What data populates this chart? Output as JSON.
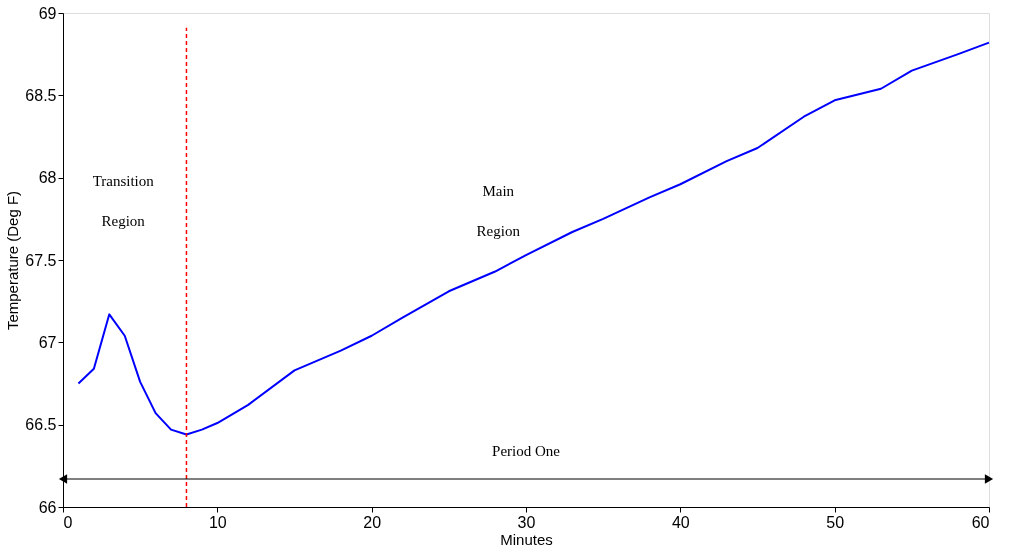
{
  "chart_data": {
    "type": "line",
    "xlabel": "Minutes",
    "ylabel": "Temperature (Deg F)",
    "x": [
      1,
      2,
      3,
      4,
      5,
      6,
      7,
      8,
      9,
      10,
      12,
      15,
      18,
      20,
      22,
      25,
      28,
      30,
      33,
      35,
      38,
      40,
      43,
      45,
      48,
      50,
      53,
      55,
      58,
      60
    ],
    "series": [
      {
        "color": "#0000ff",
        "values": [
          66.75,
          66.84,
          67.17,
          67.04,
          66.76,
          66.57,
          66.47,
          66.44,
          66.47,
          66.51,
          66.62,
          66.83,
          66.95,
          67.04,
          67.15,
          67.31,
          67.43,
          67.53,
          67.67,
          67.75,
          67.88,
          67.96,
          68.1,
          68.18,
          68.37,
          68.47,
          68.54,
          68.65,
          68.75,
          68.82
        ]
      }
    ],
    "xlim": [
      0,
      60
    ],
    "xticks": [
      0,
      10,
      20,
      30,
      40,
      50,
      60
    ],
    "ylim": [
      66,
      69
    ],
    "yticks": [
      66,
      66.5,
      67,
      67.5,
      68,
      68.5,
      69
    ],
    "ref_lines": [
      {
        "axis": "x",
        "value": 8,
        "color": "#ff0000",
        "line_style": "dashed"
      },
      {
        "axis": "y",
        "value": 66.17,
        "label": "Period One",
        "color": "#000000",
        "line_style": "solid"
      }
    ],
    "annotations": [
      "Transition\nRegion",
      "Main\nRegion"
    ],
    "grid": false,
    "line_style": "solid",
    "marker": "none"
  }
}
